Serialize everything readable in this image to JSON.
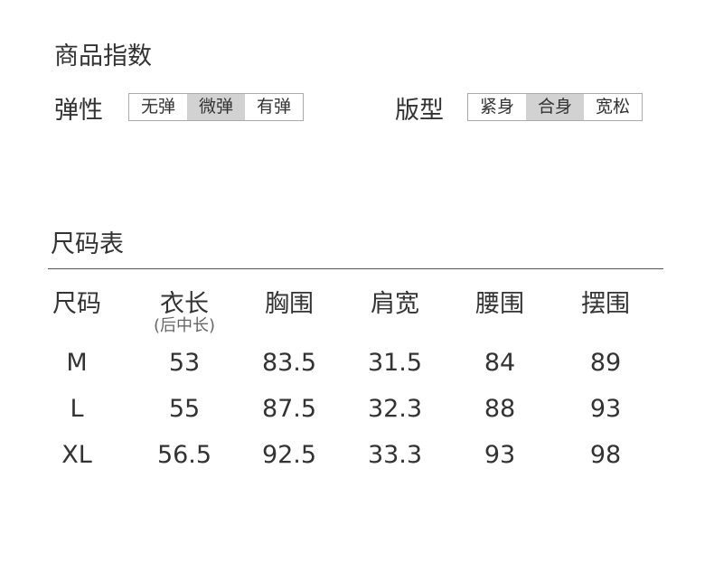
{
  "index": {
    "title": "商品指数",
    "elasticity": {
      "label": "弹性",
      "options": [
        "无弹",
        "微弹",
        "有弹"
      ],
      "selected": "微弹"
    },
    "fit": {
      "label": "版型",
      "options": [
        "紧身",
        "合身",
        "宽松"
      ],
      "selected": "合身"
    }
  },
  "size_table": {
    "title": "尺码表",
    "headers": [
      "尺码",
      "衣长",
      "胸围",
      "肩宽",
      "腰围",
      "摆围"
    ],
    "header_note": "(后中长)",
    "rows": [
      [
        "M",
        "53",
        "83.5",
        "31.5",
        "84",
        "89"
      ],
      [
        "L",
        "55",
        "87.5",
        "32.3",
        "88",
        "93"
      ],
      [
        "XL",
        "56.5",
        "92.5",
        "33.3",
        "93",
        "98"
      ]
    ]
  }
}
